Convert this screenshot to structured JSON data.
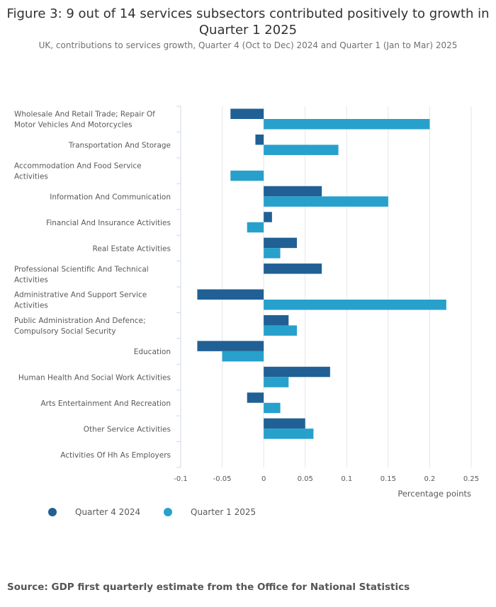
{
  "title": "Figure 3: 9 out of 14 services subsectors contributed positively to growth in Quarter 1 2025",
  "subtitle": "UK, contributions to services growth, Quarter 4 (Oct to Dec) 2024 and Quarter 1 (Jan to Mar) 2025",
  "source": "Source: GDP first quarterly estimate from the Office for National Statistics",
  "colors": {
    "q4": "#206095",
    "q1": "#27a0cc",
    "grid": "#e6e6e6",
    "axis": "#cfd9e6"
  },
  "chart_data": {
    "type": "bar",
    "orientation": "horizontal",
    "title": "Figure 3: 9 out of 14 services subsectors contributed positively to growth in Quarter 1 2025",
    "xlabel": "Percentage points",
    "ylabel": "",
    "xlim": [
      -0.1,
      0.25
    ],
    "xticks": [
      -0.1,
      -0.05,
      0,
      0.05,
      0.1,
      0.15,
      0.2,
      0.25
    ],
    "xtick_labels": [
      "-0.1",
      "-0.05",
      "0",
      "0.05",
      "0.1",
      "0.15",
      "0.2",
      "0.25"
    ],
    "grid": true,
    "legend_position": "bottom-left",
    "categories": [
      [
        "Wholesale And Retail Trade; Repair Of",
        "Motor Vehicles And Motorcycles"
      ],
      [
        "Transportation And Storage"
      ],
      [
        "Accommodation And Food Service",
        "Activities"
      ],
      [
        "Information And Communication"
      ],
      [
        "Financial And Insurance Activities"
      ],
      [
        "Real Estate Activities"
      ],
      [
        "Professional Scientific And Technical",
        "Activities"
      ],
      [
        "Administrative And Support Service",
        "Activities"
      ],
      [
        "Public Administration And Defence;",
        "Compulsory Social Security"
      ],
      [
        "Education"
      ],
      [
        "Human Health And Social Work Activities"
      ],
      [
        "Arts Entertainment And Recreation"
      ],
      [
        "Other Service Activities"
      ],
      [
        "Activities Of Hh As Employers"
      ]
    ],
    "series": [
      {
        "name": "Quarter 4 2024",
        "values": [
          -0.04,
          -0.01,
          0,
          0.07,
          0.01,
          0.04,
          0.07,
          -0.08,
          0.03,
          -0.08,
          0.08,
          -0.02,
          0.05,
          0
        ]
      },
      {
        "name": "Quarter 1 2025",
        "values": [
          0.2,
          0.09,
          -0.04,
          0.15,
          -0.02,
          0.02,
          0,
          0.22,
          0.04,
          -0.05,
          0.03,
          0.02,
          0.06,
          0
        ]
      }
    ]
  }
}
